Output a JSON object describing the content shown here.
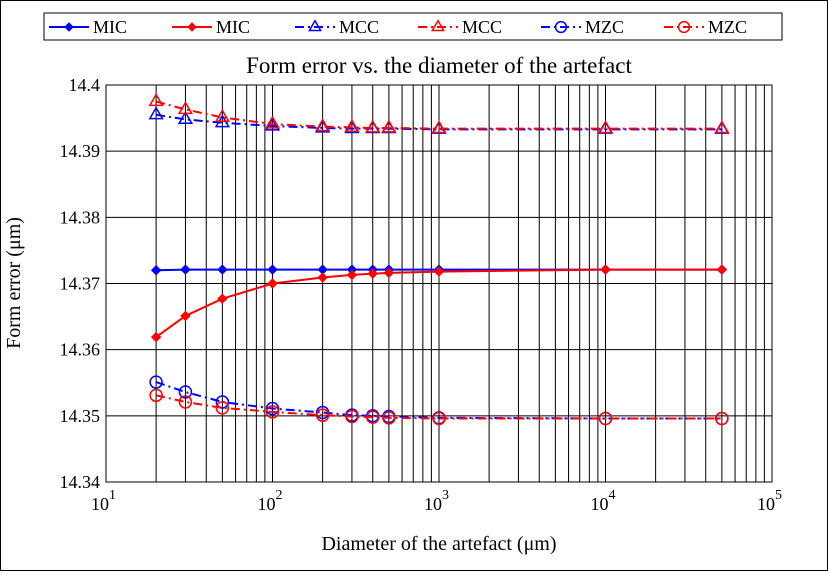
{
  "chart_data": {
    "type": "line",
    "title": "Form error vs. the diameter of the artefact",
    "xlabel": "Diameter of the artefact (μm)",
    "ylabel": "Form error (μm)",
    "xscale": "log",
    "xlim": [
      10,
      100000
    ],
    "ylim": [
      14.34,
      14.4
    ],
    "grid": true,
    "legend_position": "top",
    "x_ticks": [
      {
        "value": 10,
        "base": "10",
        "exp": "1"
      },
      {
        "value": 100,
        "base": "10",
        "exp": "2"
      },
      {
        "value": 1000,
        "base": "10",
        "exp": "3"
      },
      {
        "value": 10000,
        "base": "10",
        "exp": "4"
      },
      {
        "value": 100000,
        "base": "10",
        "exp": "5"
      }
    ],
    "y_ticks": [
      {
        "value": 14.34,
        "label": "14.34"
      },
      {
        "value": 14.35,
        "label": "14.35"
      },
      {
        "value": 14.36,
        "label": "14.36"
      },
      {
        "value": 14.37,
        "label": "14.37"
      },
      {
        "value": 14.38,
        "label": "14.38"
      },
      {
        "value": 14.39,
        "label": "14.39"
      },
      {
        "value": 14.4,
        "label": "14.4"
      }
    ],
    "x": [
      20,
      30,
      50,
      100,
      200,
      300,
      400,
      500,
      1000,
      10000,
      50000
    ],
    "series": [
      {
        "name": "MIC",
        "color": "#0000ff",
        "dash": "solid",
        "marker": "diamond",
        "values": [
          14.372,
          14.3721,
          14.3721,
          14.3721,
          14.3721,
          14.3721,
          14.3721,
          14.3721,
          14.3721,
          14.3721,
          14.3721
        ]
      },
      {
        "name": "MIC",
        "color": "#ff0000",
        "dash": "solid",
        "marker": "diamond",
        "values": [
          14.3619,
          14.3651,
          14.3677,
          14.37,
          14.3709,
          14.3713,
          14.3715,
          14.3716,
          14.3718,
          14.3721,
          14.3721
        ]
      },
      {
        "name": "MCC",
        "color": "#0000ff",
        "dash": "dashdot",
        "marker": "triangle",
        "values": [
          14.3955,
          14.3948,
          14.3943,
          14.3938,
          14.3935,
          14.3934,
          14.3934,
          14.3934,
          14.3933,
          14.3933,
          14.3933
        ]
      },
      {
        "name": "MCC",
        "color": "#ff0000",
        "dash": "dashdot",
        "marker": "triangle",
        "values": [
          14.3975,
          14.3963,
          14.3951,
          14.3941,
          14.3937,
          14.3936,
          14.3935,
          14.3935,
          14.3934,
          14.3934,
          14.3934
        ]
      },
      {
        "name": "MZC",
        "color": "#0000ff",
        "dash": "dashdot",
        "marker": "circle",
        "values": [
          14.3551,
          14.3536,
          14.3521,
          14.3511,
          14.3505,
          14.3501,
          14.35,
          14.3499,
          14.3497,
          14.3496,
          14.3496
        ]
      },
      {
        "name": "MZC",
        "color": "#ff0000",
        "dash": "dashdot",
        "marker": "circle",
        "values": [
          14.3531,
          14.3521,
          14.3512,
          14.3506,
          14.3501,
          14.3499,
          14.3498,
          14.3497,
          14.3496,
          14.3496,
          14.3496
        ]
      }
    ]
  }
}
